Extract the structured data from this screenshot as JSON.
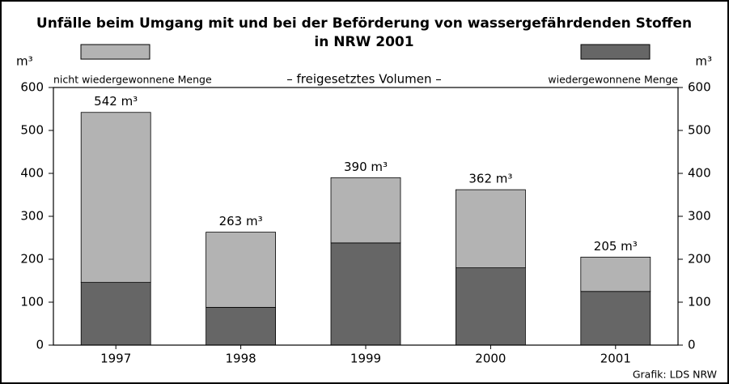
{
  "chart_data": {
    "type": "stacked_bar",
    "title": [
      "Unfälle beim Umgang mit und bei der Beförderung von wassergefährdenden Stoffen",
      "in NRW 2001"
    ],
    "subtitle": "– freigesetztes Volumen –",
    "y_label": "m³",
    "y2_label": "m³",
    "categories": [
      "1997",
      "1998",
      "1999",
      "2000",
      "2001"
    ],
    "series": [
      {
        "name": "wiedergewonnene Menge",
        "color": "#666666",
        "values": [
          146,
          88,
          238,
          180,
          125
        ]
      },
      {
        "name": "nicht wiedergewonnene Menge",
        "color": "#b3b3b3",
        "values": [
          396,
          175,
          152,
          182,
          80
        ]
      }
    ],
    "total_labels": [
      "542 m³",
      "263 m³",
      "390 m³",
      "362 m³",
      "205 m³"
    ],
    "ylim": [
      0,
      600
    ],
    "yticks": [
      0,
      100,
      200,
      300,
      400,
      500,
      600
    ],
    "y2lim": [
      0,
      600
    ],
    "y2ticks": [
      0,
      100,
      200,
      300,
      400,
      500,
      600
    ],
    "source": "Grafik: LDS NRW"
  }
}
